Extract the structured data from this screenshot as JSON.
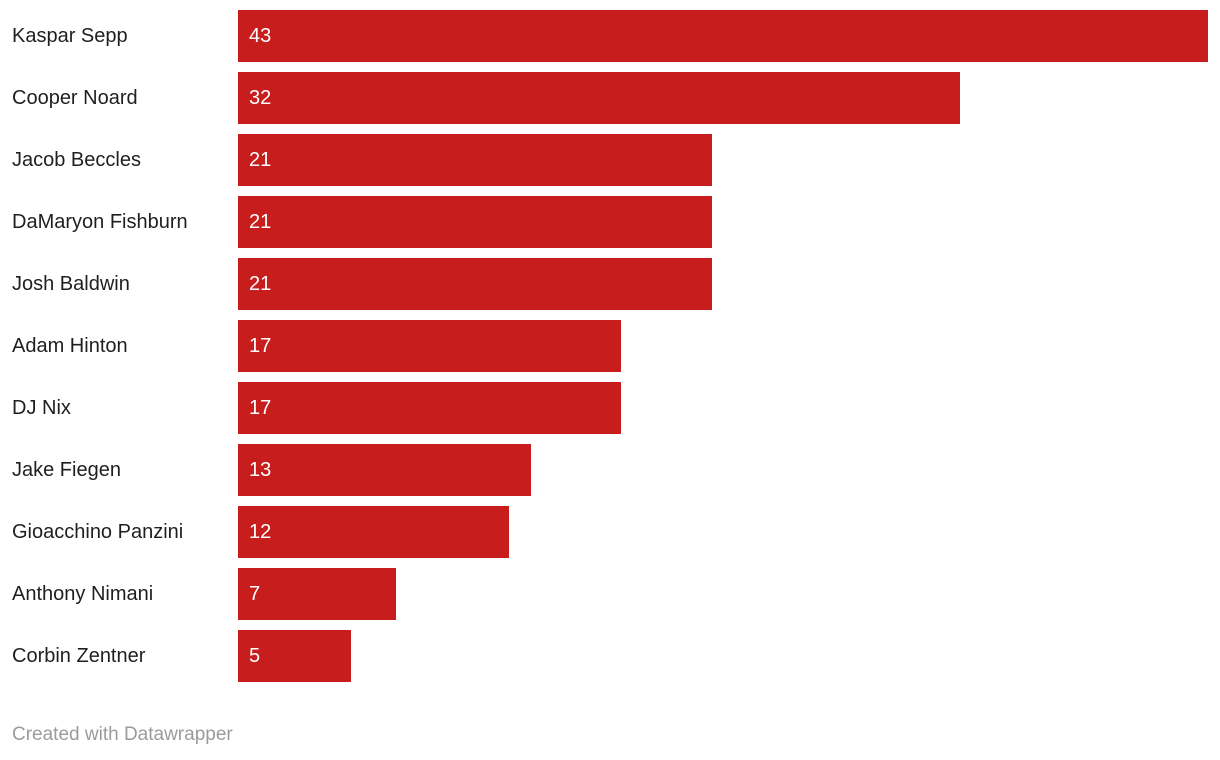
{
  "chart_data": {
    "type": "bar",
    "orientation": "horizontal",
    "title": "",
    "xlabel": "",
    "ylabel": "",
    "categories": [
      "Kaspar Sepp",
      "Cooper Noard",
      "Jacob Beccles",
      "DaMaryon Fishburn",
      "Josh Baldwin",
      "Adam Hinton",
      "DJ Nix",
      "Jake Fiegen",
      "Gioacchino Panzini",
      "Anthony Nimani",
      "Corbin Zentner"
    ],
    "values": [
      43,
      32,
      21,
      21,
      21,
      17,
      17,
      13,
      12,
      7,
      5
    ],
    "xlim": [
      0,
      43
    ],
    "grid": false,
    "legend": false,
    "value_labels_inside_bar": true,
    "colors": {
      "bar": "#c71e1d",
      "value_label": "#ffffff",
      "category_label": "#1f1f1f"
    }
  },
  "footer": {
    "attribution": "Created with Datawrapper"
  }
}
